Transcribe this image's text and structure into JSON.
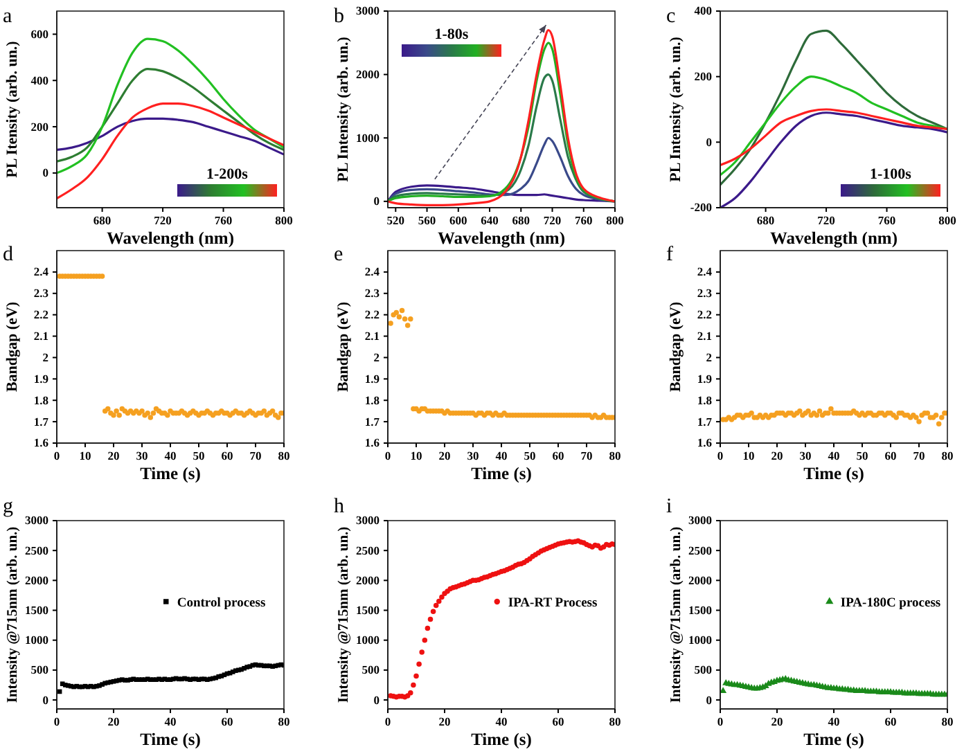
{
  "chart_data": [
    {
      "type": "line",
      "title": "a",
      "xlabel": "Wavelength (nm)",
      "ylabel": "PL Itensity (arb. un.)",
      "xlim": [
        650,
        800
      ],
      "ylim": [
        -150,
        700
      ],
      "xticks": [
        680,
        720,
        760,
        800
      ],
      "yticks": [
        0,
        200,
        400,
        600
      ],
      "x": [
        650,
        660,
        670,
        680,
        690,
        700,
        710,
        720,
        730,
        740,
        750,
        760,
        770,
        780,
        790,
        800
      ],
      "annotations": [
        "1-200s"
      ],
      "marker": "none",
      "grid": false,
      "series": [
        {
          "color": "#3b1a8a",
          "values": [
            100,
            110,
            130,
            160,
            200,
            225,
            235,
            235,
            230,
            220,
            200,
            180,
            160,
            140,
            110,
            80
          ]
        },
        {
          "color": "#2e7d32",
          "values": [
            50,
            70,
            110,
            200,
            300,
            400,
            450,
            440,
            410,
            370,
            320,
            270,
            220,
            170,
            130,
            100
          ]
        },
        {
          "color": "#22c022",
          "values": [
            0,
            30,
            80,
            200,
            380,
            520,
            580,
            570,
            530,
            470,
            400,
            320,
            250,
            190,
            150,
            110
          ]
        },
        {
          "color": "#ff2020",
          "values": [
            -110,
            -70,
            -20,
            60,
            160,
            240,
            280,
            300,
            300,
            290,
            270,
            240,
            210,
            180,
            150,
            120
          ]
        }
      ]
    },
    {
      "type": "line",
      "title": "b",
      "xlabel": "Wavelength (nm)",
      "ylabel": "PL Intensity (arb. un.)",
      "xlim": [
        510,
        800
      ],
      "ylim": [
        -100,
        3000
      ],
      "xticks": [
        520,
        560,
        600,
        640,
        680,
        720,
        760,
        800
      ],
      "yticks": [
        0,
        1000,
        2000,
        3000
      ],
      "x": [
        510,
        520,
        540,
        560,
        580,
        600,
        620,
        640,
        660,
        680,
        690,
        700,
        710,
        715,
        720,
        730,
        740,
        750,
        760,
        780,
        800
      ],
      "annotations": [
        "1-80s"
      ],
      "marker": "none",
      "grid": false,
      "series": [
        {
          "color": "#3b1a8a",
          "values": [
            0,
            150,
            230,
            250,
            240,
            220,
            200,
            160,
            120,
            100,
            100,
            100,
            110,
            100,
            90,
            70,
            50,
            30,
            20,
            10,
            0
          ]
        },
        {
          "color": "#3a4a8a",
          "values": [
            0,
            120,
            180,
            190,
            180,
            160,
            140,
            110,
            100,
            200,
            330,
            600,
            900,
            1000,
            950,
            700,
            400,
            200,
            100,
            30,
            0
          ]
        },
        {
          "color": "#2a7a4a",
          "values": [
            0,
            80,
            120,
            130,
            120,
            110,
            100,
            90,
            150,
            500,
            900,
            1500,
            1950,
            2000,
            1900,
            1300,
            700,
            350,
            150,
            40,
            0
          ]
        },
        {
          "color": "#22b022",
          "values": [
            0,
            50,
            80,
            90,
            80,
            70,
            70,
            80,
            200,
            700,
            1200,
            1900,
            2400,
            2500,
            2400,
            1700,
            900,
            400,
            180,
            50,
            0
          ]
        },
        {
          "color": "#ff2020",
          "values": [
            0,
            -30,
            -50,
            -60,
            -60,
            -50,
            -30,
            0,
            150,
            700,
            1300,
            2000,
            2550,
            2700,
            2600,
            1850,
            1000,
            450,
            200,
            60,
            0
          ]
        }
      ]
    },
    {
      "type": "line",
      "title": "c",
      "xlabel": "Wavelength (nm)",
      "ylabel": "PL Intensity (arb. un.)",
      "xlim": [
        650,
        800
      ],
      "ylim": [
        -200,
        400
      ],
      "xticks": [
        680,
        720,
        760,
        800
      ],
      "yticks": [
        -200,
        0,
        200,
        400
      ],
      "x": [
        650,
        660,
        670,
        680,
        690,
        700,
        710,
        720,
        730,
        740,
        750,
        760,
        770,
        780,
        790,
        800
      ],
      "annotations": [
        "1-100s"
      ],
      "marker": "none",
      "grid": false,
      "series": [
        {
          "color": "#3b1a8a",
          "values": [
            -200,
            -170,
            -120,
            -60,
            0,
            50,
            80,
            90,
            85,
            80,
            70,
            60,
            50,
            45,
            40,
            30
          ]
        },
        {
          "color": "#2e6b3a",
          "values": [
            -130,
            -80,
            -20,
            60,
            150,
            250,
            330,
            340,
            300,
            250,
            200,
            150,
            110,
            80,
            60,
            40
          ]
        },
        {
          "color": "#22c022",
          "values": [
            -100,
            -60,
            0,
            60,
            120,
            170,
            200,
            190,
            170,
            150,
            120,
            100,
            80,
            60,
            50,
            40
          ]
        },
        {
          "color": "#ff2020",
          "values": [
            -70,
            -50,
            -20,
            20,
            60,
            80,
            95,
            100,
            95,
            90,
            80,
            70,
            60,
            50,
            45,
            40
          ]
        }
      ]
    },
    {
      "type": "scatter",
      "title": "d",
      "xlabel": "Time (s)",
      "ylabel": "Bandgap (eV)",
      "xlim": [
        0,
        80
      ],
      "ylim": [
        1.6,
        2.5
      ],
      "xticks": [
        0,
        10,
        20,
        30,
        40,
        50,
        60,
        70,
        80
      ],
      "yticks": [
        1.6,
        1.7,
        1.8,
        1.9,
        2.0,
        2.1,
        2.2,
        2.3,
        2.4
      ],
      "marker": "circle",
      "grid": false,
      "x": [
        1,
        2,
        3,
        4,
        5,
        6,
        7,
        8,
        9,
        10,
        11,
        12,
        13,
        14,
        15,
        16,
        17,
        18,
        19,
        20,
        21,
        22,
        23,
        24,
        25,
        26,
        27,
        28,
        29,
        30,
        31,
        32,
        33,
        34,
        35,
        36,
        37,
        38,
        39,
        40,
        41,
        42,
        43,
        44,
        45,
        46,
        47,
        48,
        49,
        50,
        51,
        52,
        53,
        54,
        55,
        56,
        57,
        58,
        59,
        60,
        61,
        62,
        63,
        64,
        65,
        66,
        67,
        68,
        69,
        70,
        71,
        72,
        73,
        74,
        75,
        76,
        77,
        78,
        79,
        80
      ],
      "series": [
        {
          "color": "#f5a020",
          "values": [
            2.38,
            2.38,
            2.38,
            2.38,
            2.38,
            2.38,
            2.38,
            2.38,
            2.38,
            2.38,
            2.38,
            2.38,
            2.38,
            2.38,
            2.38,
            2.38,
            1.75,
            1.76,
            1.74,
            1.73,
            1.75,
            1.73,
            1.76,
            1.75,
            1.74,
            1.75,
            1.74,
            1.75,
            1.74,
            1.75,
            1.73,
            1.74,
            1.72,
            1.74,
            1.76,
            1.75,
            1.74,
            1.74,
            1.73,
            1.75,
            1.74,
            1.74,
            1.74,
            1.75,
            1.74,
            1.73,
            1.74,
            1.75,
            1.74,
            1.73,
            1.74,
            1.74,
            1.75,
            1.74,
            1.73,
            1.74,
            1.74,
            1.75,
            1.74,
            1.74,
            1.73,
            1.74,
            1.75,
            1.74,
            1.74,
            1.73,
            1.74,
            1.75,
            1.74,
            1.73,
            1.74,
            1.74,
            1.75,
            1.73,
            1.74,
            1.75,
            1.73,
            1.72,
            1.74,
            1.74
          ]
        }
      ]
    },
    {
      "type": "scatter",
      "title": "e",
      "xlabel": "Time (s)",
      "ylabel": "Bandgap (eV)",
      "xlim": [
        0,
        80
      ],
      "ylim": [
        1.6,
        2.5
      ],
      "xticks": [
        0,
        10,
        20,
        30,
        40,
        50,
        60,
        70,
        80
      ],
      "yticks": [
        1.6,
        1.7,
        1.8,
        1.9,
        2.0,
        2.1,
        2.2,
        2.3,
        2.4
      ],
      "marker": "circle",
      "grid": false,
      "x": [
        1,
        2,
        3,
        4,
        5,
        6,
        7,
        8,
        9,
        10,
        11,
        12,
        13,
        14,
        15,
        16,
        17,
        18,
        19,
        20,
        21,
        22,
        23,
        24,
        25,
        26,
        27,
        28,
        29,
        30,
        31,
        32,
        33,
        34,
        35,
        36,
        37,
        38,
        39,
        40,
        41,
        42,
        43,
        44,
        45,
        46,
        47,
        48,
        49,
        50,
        51,
        52,
        53,
        54,
        55,
        56,
        57,
        58,
        59,
        60,
        61,
        62,
        63,
        64,
        65,
        66,
        67,
        68,
        69,
        70,
        71,
        72,
        73,
        74,
        75,
        76,
        77,
        78,
        79,
        80
      ],
      "series": [
        {
          "color": "#f5a020",
          "values": [
            2.16,
            2.2,
            2.21,
            2.19,
            2.22,
            2.18,
            2.15,
            2.18,
            1.76,
            1.76,
            1.75,
            1.76,
            1.76,
            1.75,
            1.75,
            1.75,
            1.75,
            1.75,
            1.75,
            1.74,
            1.75,
            1.74,
            1.74,
            1.74,
            1.74,
            1.74,
            1.74,
            1.74,
            1.74,
            1.74,
            1.73,
            1.74,
            1.74,
            1.73,
            1.74,
            1.74,
            1.73,
            1.74,
            1.73,
            1.73,
            1.74,
            1.73,
            1.73,
            1.73,
            1.73,
            1.73,
            1.73,
            1.73,
            1.73,
            1.73,
            1.73,
            1.73,
            1.73,
            1.73,
            1.73,
            1.73,
            1.73,
            1.73,
            1.73,
            1.73,
            1.73,
            1.73,
            1.73,
            1.73,
            1.73,
            1.73,
            1.73,
            1.73,
            1.73,
            1.73,
            1.73,
            1.72,
            1.73,
            1.72,
            1.72,
            1.73,
            1.72,
            1.72,
            1.72,
            1.72
          ]
        }
      ]
    },
    {
      "type": "scatter",
      "title": "f",
      "xlabel": "Time (s)",
      "ylabel": "Bandgap (eV)",
      "xlim": [
        0,
        80
      ],
      "ylim": [
        1.6,
        2.5
      ],
      "xticks": [
        0,
        10,
        20,
        30,
        40,
        50,
        60,
        70,
        80
      ],
      "yticks": [
        1.6,
        1.7,
        1.8,
        1.9,
        2.0,
        2.1,
        2.2,
        2.3,
        2.4
      ],
      "marker": "circle",
      "grid": false,
      "x": [
        1,
        2,
        3,
        4,
        5,
        6,
        7,
        8,
        9,
        10,
        11,
        12,
        13,
        14,
        15,
        16,
        17,
        18,
        19,
        20,
        21,
        22,
        23,
        24,
        25,
        26,
        27,
        28,
        29,
        30,
        31,
        32,
        33,
        34,
        35,
        36,
        37,
        38,
        39,
        40,
        41,
        42,
        43,
        44,
        45,
        46,
        47,
        48,
        49,
        50,
        51,
        52,
        53,
        54,
        55,
        56,
        57,
        58,
        59,
        60,
        61,
        62,
        63,
        64,
        65,
        66,
        67,
        68,
        69,
        70,
        71,
        72,
        73,
        74,
        75,
        76,
        77,
        78,
        79,
        80
      ],
      "series": [
        {
          "color": "#f5a020",
          "values": [
            1.71,
            1.71,
            1.72,
            1.71,
            1.72,
            1.73,
            1.73,
            1.72,
            1.73,
            1.73,
            1.74,
            1.72,
            1.72,
            1.73,
            1.72,
            1.73,
            1.72,
            1.73,
            1.73,
            1.74,
            1.74,
            1.74,
            1.73,
            1.74,
            1.74,
            1.73,
            1.74,
            1.75,
            1.73,
            1.74,
            1.75,
            1.73,
            1.74,
            1.73,
            1.75,
            1.73,
            1.74,
            1.74,
            1.76,
            1.74,
            1.74,
            1.74,
            1.74,
            1.74,
            1.74,
            1.74,
            1.75,
            1.74,
            1.73,
            1.74,
            1.73,
            1.74,
            1.74,
            1.73,
            1.73,
            1.74,
            1.74,
            1.73,
            1.74,
            1.74,
            1.73,
            1.72,
            1.74,
            1.74,
            1.73,
            1.73,
            1.72,
            1.73,
            1.72,
            1.7,
            1.73,
            1.74,
            1.74,
            1.72,
            1.72,
            1.73,
            1.69,
            1.72,
            1.74,
            1.74
          ]
        }
      ]
    },
    {
      "type": "scatter",
      "title": "g",
      "xlabel": "Time (s)",
      "ylabel": "Intensity @715nm (arb. un.)",
      "xlim": [
        0,
        80
      ],
      "ylim": [
        -150,
        3000
      ],
      "xticks": [
        0,
        20,
        40,
        60,
        80
      ],
      "yticks": [
        0,
        500,
        1000,
        1500,
        2000,
        2500,
        3000
      ],
      "marker": "square",
      "legend": "right",
      "grid": false,
      "x": [
        1,
        2,
        3,
        4,
        5,
        6,
        7,
        8,
        9,
        10,
        11,
        12,
        13,
        14,
        15,
        16,
        17,
        18,
        19,
        20,
        21,
        22,
        23,
        24,
        25,
        26,
        27,
        28,
        29,
        30,
        31,
        32,
        33,
        34,
        35,
        36,
        37,
        38,
        39,
        40,
        41,
        42,
        43,
        44,
        45,
        46,
        47,
        48,
        49,
        50,
        51,
        52,
        53,
        54,
        55,
        56,
        57,
        58,
        59,
        60,
        61,
        62,
        63,
        64,
        65,
        66,
        67,
        68,
        69,
        70,
        71,
        72,
        73,
        74,
        75,
        76,
        77,
        78,
        79,
        80
      ],
      "series": [
        {
          "name": "Control process",
          "color": "#000000",
          "values": [
            140,
            270,
            250,
            240,
            230,
            220,
            230,
            220,
            220,
            230,
            220,
            230,
            220,
            230,
            240,
            260,
            280,
            290,
            300,
            310,
            320,
            330,
            340,
            330,
            330,
            340,
            350,
            340,
            340,
            340,
            340,
            350,
            340,
            340,
            340,
            350,
            340,
            350,
            340,
            340,
            350,
            360,
            350,
            350,
            360,
            350,
            340,
            350,
            350,
            340,
            350,
            350,
            340,
            350,
            360,
            370,
            390,
            400,
            420,
            440,
            450,
            470,
            490,
            500,
            510,
            530,
            550,
            560,
            580,
            590,
            580,
            580,
            570,
            570,
            570,
            560,
            570,
            580,
            590,
            580
          ]
        }
      ]
    },
    {
      "type": "scatter",
      "title": "h",
      "xlabel": "Time (s)",
      "ylabel": "Intensity @715nm (arb. un.)",
      "xlim": [
        0,
        80
      ],
      "ylim": [
        -150,
        3000
      ],
      "xticks": [
        0,
        20,
        40,
        60,
        80
      ],
      "yticks": [
        0,
        500,
        1000,
        1500,
        2000,
        2500,
        3000
      ],
      "marker": "circle",
      "legend": "right",
      "grid": false,
      "x": [
        1,
        2,
        3,
        4,
        5,
        6,
        7,
        8,
        9,
        10,
        11,
        12,
        13,
        14,
        15,
        16,
        17,
        18,
        19,
        20,
        21,
        22,
        23,
        24,
        25,
        26,
        27,
        28,
        29,
        30,
        31,
        32,
        33,
        34,
        35,
        36,
        37,
        38,
        39,
        40,
        41,
        42,
        43,
        44,
        45,
        46,
        47,
        48,
        49,
        50,
        51,
        52,
        53,
        54,
        55,
        56,
        57,
        58,
        59,
        60,
        61,
        62,
        63,
        64,
        65,
        66,
        67,
        68,
        69,
        70,
        71,
        72,
        73,
        74,
        75,
        76,
        77,
        78,
        79,
        80
      ],
      "series": [
        {
          "name": "IPA-RT Process",
          "color": "#ee1111",
          "values": [
            70,
            60,
            50,
            60,
            60,
            50,
            70,
            120,
            250,
            400,
            600,
            800,
            1000,
            1200,
            1350,
            1480,
            1580,
            1650,
            1720,
            1780,
            1820,
            1860,
            1880,
            1890,
            1910,
            1930,
            1940,
            1960,
            1980,
            2000,
            2000,
            2010,
            2030,
            2050,
            2060,
            2080,
            2100,
            2110,
            2130,
            2150,
            2160,
            2180,
            2200,
            2220,
            2250,
            2270,
            2280,
            2300,
            2330,
            2360,
            2400,
            2430,
            2460,
            2490,
            2510,
            2530,
            2550,
            2570,
            2590,
            2610,
            2620,
            2630,
            2640,
            2650,
            2640,
            2650,
            2660,
            2640,
            2630,
            2600,
            2580,
            2560,
            2590,
            2580,
            2540,
            2560,
            2600,
            2590,
            2610,
            2600
          ]
        }
      ]
    },
    {
      "type": "scatter",
      "title": "i",
      "xlabel": "Time (s)",
      "ylabel": "Intensity @715nm (arb. un.)",
      "xlim": [
        0,
        80
      ],
      "ylim": [
        -150,
        3000
      ],
      "xticks": [
        0,
        20,
        40,
        60,
        80
      ],
      "yticks": [
        0,
        500,
        1000,
        1500,
        2000,
        2500,
        3000
      ],
      "marker": "triangle",
      "legend": "right",
      "grid": false,
      "x": [
        1,
        2,
        3,
        4,
        5,
        6,
        7,
        8,
        9,
        10,
        11,
        12,
        13,
        14,
        15,
        16,
        17,
        18,
        19,
        20,
        21,
        22,
        23,
        24,
        25,
        26,
        27,
        28,
        29,
        30,
        31,
        32,
        33,
        34,
        35,
        36,
        37,
        38,
        39,
        40,
        41,
        42,
        43,
        44,
        45,
        46,
        47,
        48,
        49,
        50,
        51,
        52,
        53,
        54,
        55,
        56,
        57,
        58,
        59,
        60,
        61,
        62,
        63,
        64,
        65,
        66,
        67,
        68,
        69,
        70,
        71,
        72,
        73,
        74,
        75,
        76,
        77,
        78,
        79,
        80
      ],
      "series": [
        {
          "name": "IPA-180C process",
          "color": "#1a8a1a",
          "values": [
            150,
            280,
            270,
            260,
            250,
            250,
            240,
            230,
            220,
            210,
            200,
            190,
            190,
            200,
            210,
            230,
            270,
            290,
            300,
            320,
            330,
            340,
            350,
            330,
            320,
            310,
            300,
            290,
            280,
            270,
            260,
            250,
            250,
            240,
            230,
            220,
            210,
            200,
            200,
            190,
            190,
            180,
            180,
            170,
            170,
            160,
            160,
            150,
            150,
            150,
            150,
            140,
            140,
            140,
            140,
            130,
            130,
            130,
            130,
            130,
            120,
            120,
            120,
            120,
            110,
            110,
            110,
            110,
            110,
            100,
            100,
            100,
            100,
            100,
            90,
            90,
            90,
            90,
            90,
            90
          ]
        }
      ]
    }
  ]
}
